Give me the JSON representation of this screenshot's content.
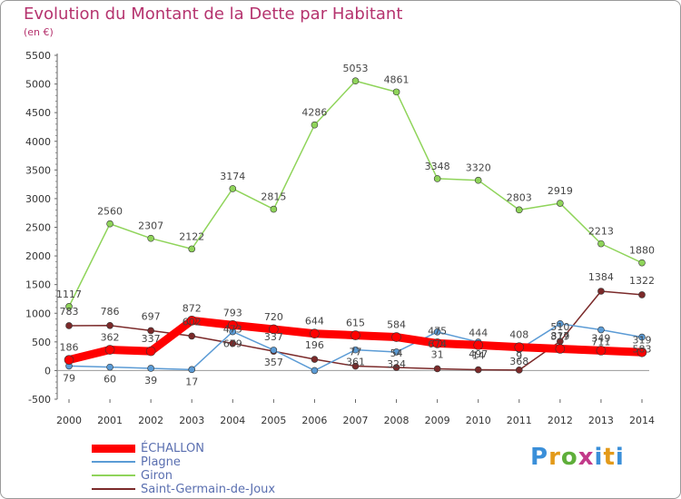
{
  "title": "Evolution du Montant de la Dette par Habitant",
  "subtitle": "(en €)",
  "logo_text": "Proxiti",
  "chart_data": {
    "type": "line",
    "title": "Evolution du Montant de la Dette par Habitant",
    "subtitle": "(en €)",
    "xlabel": "",
    "ylabel": "",
    "ylim": [
      -500,
      5500
    ],
    "y_ticks": [
      -500,
      0,
      500,
      1000,
      1500,
      2000,
      2500,
      3000,
      3500,
      4000,
      4500,
      5000,
      5500
    ],
    "grid": false,
    "legend_position": "bottom-left",
    "categories": [
      "2000",
      "2001",
      "2002",
      "2003",
      "2004",
      "2005",
      "2006",
      "2007",
      "2008",
      "2009",
      "2010",
      "2011",
      "2012",
      "2013",
      "2014"
    ],
    "series": [
      {
        "name": "ÉCHALLON",
        "color": "#ff0000",
        "values": [
          186,
          362,
          337,
          872,
          793,
          720,
          644,
          615,
          584,
          475,
          444,
          408,
          379,
          349,
          319
        ]
      },
      {
        "name": "Plagne",
        "color": "#5b9bd5",
        "values": [
          79,
          60,
          39,
          17,
          679,
          357,
          0,
          361,
          324,
          674,
          497,
          368,
          817,
          711,
          583
        ]
      },
      {
        "name": "Giron",
        "color": "#8fd45a",
        "values": [
          1117,
          2560,
          2307,
          2122,
          3174,
          2815,
          4286,
          5053,
          4861,
          3348,
          3320,
          2803,
          2919,
          2213,
          1880
        ]
      },
      {
        "name": "Saint-Germain-de-Joux",
        "color": "#7b2a2a",
        "values": [
          783,
          786,
          697,
          602,
          473,
          337,
          196,
          77,
          54,
          31,
          14,
          9,
          510,
          1384,
          1322
        ]
      }
    ],
    "point_labels": [
      {
        "x": "2000",
        "text": "1117",
        "series": "Giron"
      },
      {
        "x": "2001",
        "text": "2560",
        "series": "Giron"
      },
      {
        "x": "2002",
        "text": "2307",
        "series": "Giron"
      },
      {
        "x": "2003",
        "text": "2122",
        "series": "Giron"
      },
      {
        "x": "2004",
        "text": "3174",
        "series": "Giron"
      },
      {
        "x": "2005",
        "text": "2815",
        "series": "Giron"
      },
      {
        "x": "2006",
        "text": "4286",
        "series": "Giron"
      },
      {
        "x": "2007",
        "text": "5053",
        "series": "Giron"
      },
      {
        "x": "2008",
        "text": "4861",
        "series": "Giron"
      },
      {
        "x": "2009",
        "text": "3348",
        "series": "Giron"
      },
      {
        "x": "2010",
        "text": "3320",
        "series": "Giron"
      },
      {
        "x": "2011",
        "text": "2803",
        "series": "Giron"
      },
      {
        "x": "2012",
        "text": "2919",
        "series": "Giron"
      },
      {
        "x": "2013",
        "text": "2213",
        "series": "Giron"
      },
      {
        "x": "2014",
        "text": "1880",
        "series": "Giron"
      },
      {
        "x": "2000",
        "text": "783",
        "series": "Saint-Germain-de-Joux"
      },
      {
        "x": "2001",
        "text": "786",
        "series": "Saint-Germain-de-Joux"
      },
      {
        "x": "2002",
        "text": "697",
        "series": "Saint-Germain-de-Joux"
      },
      {
        "x": "2003",
        "text": "602",
        "series": "Saint-Germain-de-Joux"
      },
      {
        "x": "2004",
        "text": "473",
        "series": "Saint-Germain-de-Joux"
      },
      {
        "x": "2005",
        "text": "337",
        "series": "Saint-Germain-de-Joux"
      },
      {
        "x": "2006",
        "text": "196",
        "series": "Saint-Germain-de-Joux"
      },
      {
        "x": "2007",
        "text": "77",
        "series": "Saint-Germain-de-Joux"
      },
      {
        "x": "2008",
        "text": "54",
        "series": "Saint-Germain-de-Joux"
      },
      {
        "x": "2009",
        "text": "31",
        "series": "Saint-Germain-de-Joux"
      },
      {
        "x": "2010",
        "text": "14",
        "series": "Saint-Germain-de-Joux"
      },
      {
        "x": "2011",
        "text": "9",
        "series": "Saint-Germain-de-Joux"
      },
      {
        "x": "2012",
        "text": "510",
        "series": "Saint-Germain-de-Joux"
      },
      {
        "x": "2013",
        "text": "1384",
        "series": "Saint-Germain-de-Joux"
      },
      {
        "x": "2014",
        "text": "1322",
        "series": "Saint-Germain-de-Joux"
      },
      {
        "x": "2000",
        "text": "186",
        "series": "ÉCHALLON"
      },
      {
        "x": "2001",
        "text": "362",
        "series": "ÉCHALLON"
      },
      {
        "x": "2002",
        "text": "337",
        "series": "ÉCHALLON"
      },
      {
        "x": "2003",
        "text": "872",
        "series": "ÉCHALLON"
      },
      {
        "x": "2004",
        "text": "793",
        "series": "ÉCHALLON"
      },
      {
        "x": "2005",
        "text": "720",
        "series": "ÉCHALLON"
      },
      {
        "x": "2006",
        "text": "644",
        "series": "ÉCHALLON"
      },
      {
        "x": "2007",
        "text": "615",
        "series": "ÉCHALLON"
      },
      {
        "x": "2008",
        "text": "584",
        "series": "ÉCHALLON"
      },
      {
        "x": "2009",
        "text": "475",
        "series": "ÉCHALLON"
      },
      {
        "x": "2010",
        "text": "444",
        "series": "ÉCHALLON"
      },
      {
        "x": "2011",
        "text": "408",
        "series": "ÉCHALLON"
      },
      {
        "x": "2012",
        "text": "379",
        "series": "ÉCHALLON"
      },
      {
        "x": "2013",
        "text": "349",
        "series": "ÉCHALLON"
      },
      {
        "x": "2014",
        "text": "319",
        "series": "ÉCHALLON"
      },
      {
        "x": "2000",
        "text": "79",
        "series": "Plagne"
      },
      {
        "x": "2001",
        "text": "60",
        "series": "Plagne"
      },
      {
        "x": "2002",
        "text": "39",
        "series": "Plagne"
      },
      {
        "x": "2003",
        "text": "17",
        "series": "Plagne"
      },
      {
        "x": "2004",
        "text": "679",
        "series": "Plagne"
      },
      {
        "x": "2005",
        "text": "357",
        "series": "Plagne"
      },
      {
        "x": "2007",
        "text": "361",
        "series": "Plagne"
      },
      {
        "x": "2008",
        "text": "324",
        "series": "Plagne"
      },
      {
        "x": "2009",
        "text": "674",
        "series": "Plagne"
      },
      {
        "x": "2010",
        "text": "497",
        "series": "Plagne"
      },
      {
        "x": "2011",
        "text": "368",
        "series": "Plagne"
      },
      {
        "x": "2012",
        "text": "817",
        "series": "Plagne"
      },
      {
        "x": "2013",
        "text": "711",
        "series": "Plagne"
      },
      {
        "x": "2014",
        "text": "583",
        "series": "Plagne"
      }
    ]
  }
}
